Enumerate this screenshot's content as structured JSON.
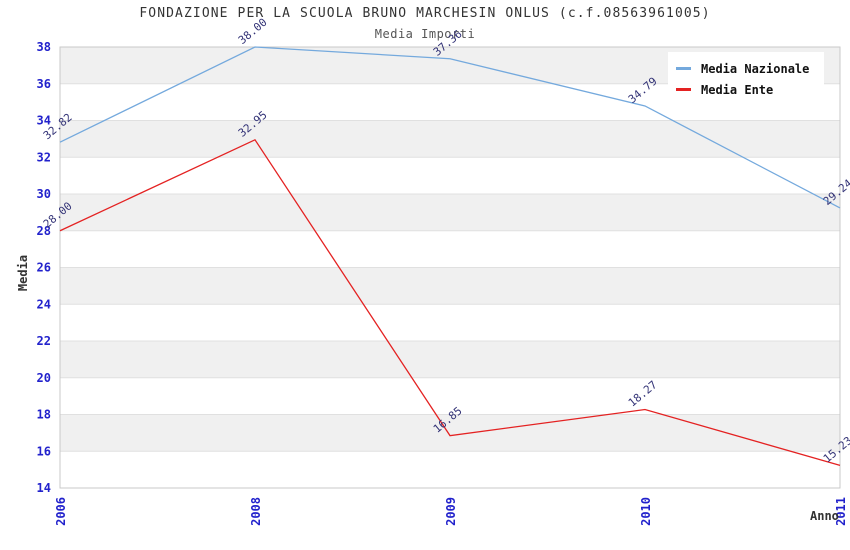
{
  "title": "FONDAZIONE PER LA SCUOLA BRUNO MARCHESIN ONLUS (c.f.08563961005)",
  "subtitle": "Media Importi",
  "chart_data": {
    "type": "line",
    "categories": [
      "2006",
      "2008",
      "2009",
      "2010",
      "2011"
    ],
    "series": [
      {
        "name": "Media Nazionale",
        "color": "#74a9dd",
        "values": [
          32.82,
          38.0,
          37.36,
          34.79,
          29.24
        ]
      },
      {
        "name": "Media Ente",
        "color": "#e42222",
        "values": [
          28.0,
          32.95,
          16.85,
          18.27,
          15.23
        ]
      }
    ],
    "xlabel": "Anno",
    "ylabel": "Media",
    "ylim": [
      14,
      38
    ],
    "ytick_step": 2,
    "grid": "horizontal-bands",
    "legend_position": "top-right",
    "data_label_format": "two-decimals"
  },
  "colors": {
    "axis_tick": "#2222cc",
    "data_label": "#333377",
    "band": "#f0f0f0",
    "grid": "#e0e0e0",
    "border": "#c9c9c9",
    "title": "#333333",
    "subtitle": "#555555",
    "legend_text": "#111111"
  }
}
